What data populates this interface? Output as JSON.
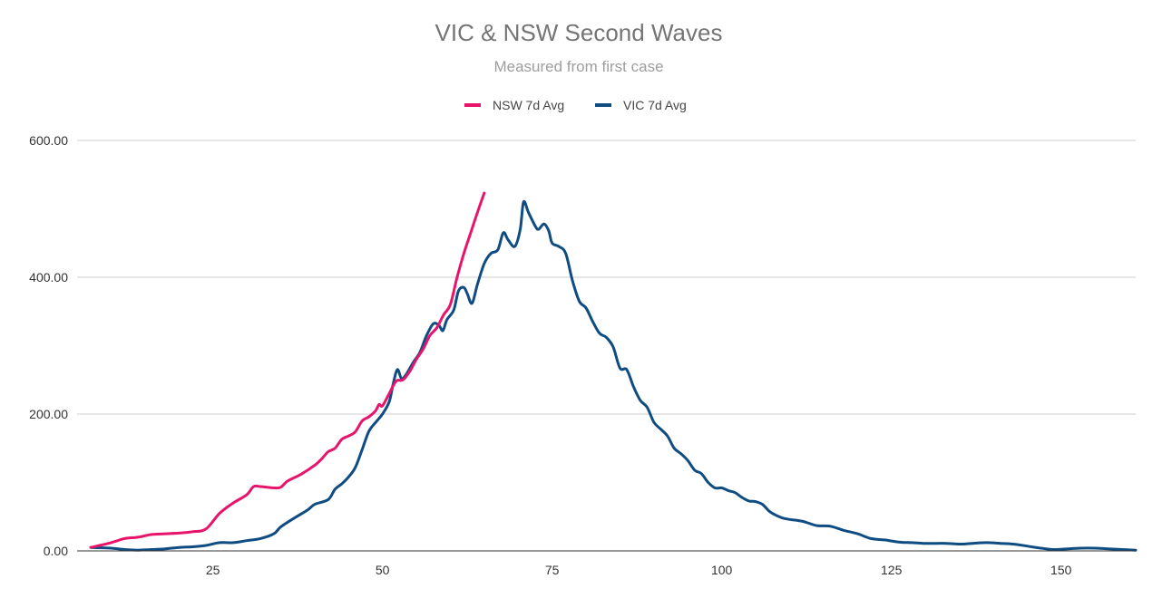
{
  "chart_data": {
    "type": "line",
    "title": "VIC & NSW Second Waves",
    "subtitle": "Measured from first case",
    "xlabel": "",
    "ylabel": "",
    "xlim": [
      5,
      161
    ],
    "ylim": [
      0,
      600
    ],
    "x_ticks": [
      25,
      50,
      75,
      100,
      125,
      150
    ],
    "y_ticks": [
      0,
      200,
      400,
      600
    ],
    "y_tick_labels": [
      "0.00",
      "200.00",
      "400.00",
      "600.00"
    ],
    "grid": true,
    "legend_position": "top-center",
    "series": [
      {
        "name": "NSW 7d Avg",
        "color": "#E8146C",
        "points": [
          [
            7,
            5
          ],
          [
            10,
            12
          ],
          [
            12,
            18
          ],
          [
            14,
            20
          ],
          [
            16,
            24
          ],
          [
            18,
            25
          ],
          [
            20,
            26
          ],
          [
            22,
            28
          ],
          [
            24,
            32
          ],
          [
            26,
            55
          ],
          [
            28,
            70
          ],
          [
            30,
            82
          ],
          [
            31,
            94
          ],
          [
            32,
            94
          ],
          [
            33,
            93
          ],
          [
            34,
            92
          ],
          [
            35,
            93
          ],
          [
            36,
            102
          ],
          [
            38,
            112
          ],
          [
            40,
            125
          ],
          [
            41,
            134
          ],
          [
            42,
            145
          ],
          [
            43,
            150
          ],
          [
            44,
            163
          ],
          [
            45,
            168
          ],
          [
            46,
            174
          ],
          [
            47,
            190
          ],
          [
            48,
            196
          ],
          [
            49,
            205
          ],
          [
            49.5,
            214
          ],
          [
            50,
            212
          ],
          [
            51,
            230
          ],
          [
            52,
            248
          ],
          [
            53,
            250
          ],
          [
            54,
            262
          ],
          [
            55,
            280
          ],
          [
            56,
            295
          ],
          [
            57,
            315
          ],
          [
            58,
            326
          ],
          [
            59,
            345
          ],
          [
            60,
            360
          ],
          [
            61,
            400
          ],
          [
            62,
            435
          ],
          [
            63,
            465
          ],
          [
            64,
            495
          ],
          [
            65,
            523
          ]
        ]
      },
      {
        "name": "VIC 7d Avg",
        "color": "#0F4C81",
        "points": [
          [
            7,
            5
          ],
          [
            10,
            4
          ],
          [
            12,
            2
          ],
          [
            14,
            1
          ],
          [
            16,
            2
          ],
          [
            18,
            3
          ],
          [
            20,
            5
          ],
          [
            22,
            6
          ],
          [
            24,
            8
          ],
          [
            26,
            12
          ],
          [
            28,
            12
          ],
          [
            30,
            15
          ],
          [
            32,
            18
          ],
          [
            34,
            25
          ],
          [
            35,
            35
          ],
          [
            37,
            48
          ],
          [
            39,
            60
          ],
          [
            40,
            68
          ],
          [
            42,
            75
          ],
          [
            43,
            90
          ],
          [
            44,
            98
          ],
          [
            45,
            108
          ],
          [
            46,
            122
          ],
          [
            47,
            148
          ],
          [
            48,
            175
          ],
          [
            49,
            188
          ],
          [
            50,
            200
          ],
          [
            51,
            218
          ],
          [
            51.6,
            245
          ],
          [
            52.2,
            265
          ],
          [
            52.8,
            252
          ],
          [
            53.5,
            258
          ],
          [
            54.5,
            275
          ],
          [
            55.5,
            290
          ],
          [
            56.5,
            315
          ],
          [
            57.5,
            332
          ],
          [
            58.3,
            330
          ],
          [
            58.9,
            322
          ],
          [
            59.5,
            338
          ],
          [
            60.5,
            352
          ],
          [
            61.2,
            380
          ],
          [
            62,
            385
          ],
          [
            62.5,
            376
          ],
          [
            63.2,
            362
          ],
          [
            64,
            390
          ],
          [
            65,
            420
          ],
          [
            66,
            435
          ],
          [
            67,
            440
          ],
          [
            67.8,
            465
          ],
          [
            68.5,
            455
          ],
          [
            69.5,
            445
          ],
          [
            70.3,
            470
          ],
          [
            70.8,
            510
          ],
          [
            71.5,
            495
          ],
          [
            72.5,
            475
          ],
          [
            73,
            470
          ],
          [
            73.8,
            478
          ],
          [
            74.5,
            468
          ],
          [
            75,
            450
          ],
          [
            76,
            445
          ],
          [
            77,
            435
          ],
          [
            78,
            395
          ],
          [
            79,
            365
          ],
          [
            80,
            355
          ],
          [
            81,
            335
          ],
          [
            82,
            318
          ],
          [
            83,
            312
          ],
          [
            84,
            298
          ],
          [
            85,
            267
          ],
          [
            86,
            265
          ],
          [
            87,
            240
          ],
          [
            88,
            220
          ],
          [
            89,
            210
          ],
          [
            90,
            188
          ],
          [
            91,
            178
          ],
          [
            92,
            168
          ],
          [
            93,
            150
          ],
          [
            94,
            142
          ],
          [
            95,
            132
          ],
          [
            96,
            118
          ],
          [
            97,
            113
          ],
          [
            98,
            100
          ],
          [
            99,
            92
          ],
          [
            100,
            92
          ],
          [
            101,
            88
          ],
          [
            102,
            85
          ],
          [
            103,
            78
          ],
          [
            104,
            73
          ],
          [
            105,
            72
          ],
          [
            106,
            68
          ],
          [
            107,
            58
          ],
          [
            108,
            52
          ],
          [
            109,
            48
          ],
          [
            110,
            46
          ],
          [
            112,
            43
          ],
          [
            114,
            37
          ],
          [
            116,
            36
          ],
          [
            118,
            30
          ],
          [
            120,
            25
          ],
          [
            122,
            18
          ],
          [
            124,
            16
          ],
          [
            126,
            13
          ],
          [
            128,
            12
          ],
          [
            130,
            11
          ],
          [
            133,
            11
          ],
          [
            135,
            10
          ],
          [
            137,
            11
          ],
          [
            139,
            12
          ],
          [
            141,
            11
          ],
          [
            143,
            10
          ],
          [
            145,
            7
          ],
          [
            147,
            4
          ],
          [
            149,
            2
          ],
          [
            151,
            3
          ],
          [
            153,
            4
          ],
          [
            155,
            4
          ],
          [
            157,
            3
          ],
          [
            159,
            2
          ],
          [
            161,
            1
          ]
        ]
      }
    ]
  }
}
